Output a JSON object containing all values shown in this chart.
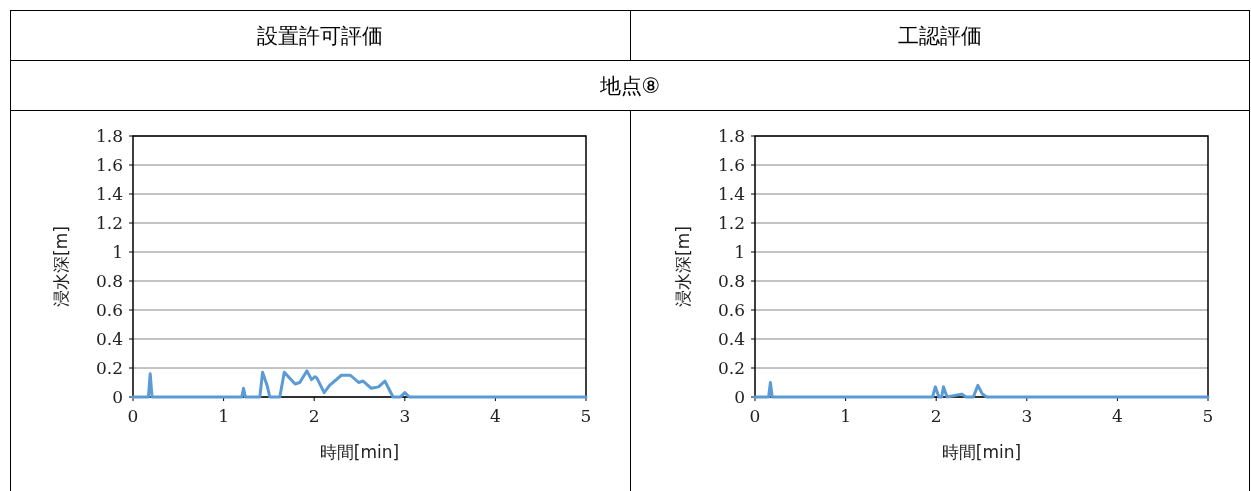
{
  "chart_data": [
    {
      "type": "line",
      "title": "設置許可評価",
      "subtitle": "地点⑧",
      "xlabel": "時間[min]",
      "ylabel": "浸水深[m]",
      "color": "#5b9bd5",
      "grid": "y",
      "x": [
        0,
        0.17,
        0.19,
        0.21,
        1.2,
        1.22,
        1.24,
        1.4,
        1.43,
        1.48,
        1.51,
        1.62,
        1.67,
        1.79,
        1.84,
        1.92,
        1.97,
        2.01,
        2.03,
        2.11,
        2.17,
        2.3,
        2.4,
        2.49,
        2.54,
        2.63,
        2.71,
        2.78,
        2.87,
        2.95,
        3.0,
        3.05,
        5
      ],
      "values": [
        0,
        0,
        0.16,
        0,
        0,
        0.06,
        0,
        0,
        0.17,
        0.08,
        0,
        0,
        0.17,
        0.09,
        0.1,
        0.18,
        0.12,
        0.14,
        0.13,
        0.03,
        0.08,
        0.15,
        0.15,
        0.1,
        0.11,
        0.06,
        0.07,
        0.11,
        0,
        0,
        0.03,
        0,
        0
      ],
      "xlim": [
        0,
        5
      ],
      "ylim": [
        0,
        1.8
      ],
      "xticks": [
        0,
        1,
        2,
        3,
        4,
        5
      ],
      "yticks": [
        0,
        0.2,
        0.4,
        0.6,
        0.8,
        1,
        1.2,
        1.4,
        1.6,
        1.8
      ]
    },
    {
      "type": "line",
      "title": "工認評価",
      "xlabel": "時間[min]",
      "ylabel": "浸水深[m]",
      "color": "#5b9bd5",
      "grid": "y",
      "x": [
        0,
        0.15,
        0.17,
        0.19,
        1.96,
        1.99,
        2.03,
        2.06,
        2.08,
        2.12,
        2.28,
        2.33,
        2.41,
        2.46,
        2.51,
        2.56,
        5
      ],
      "values": [
        0,
        0,
        0.1,
        0,
        0,
        0.07,
        0,
        0,
        0.07,
        0,
        0.02,
        0,
        0,
        0.08,
        0.02,
        0,
        0
      ],
      "xlim": [
        0,
        5
      ],
      "ylim": [
        0,
        1.8
      ],
      "xticks": [
        0,
        1,
        2,
        3,
        4,
        5
      ],
      "yticks": [
        0,
        0.2,
        0.4,
        0.6,
        0.8,
        1,
        1.2,
        1.4,
        1.6,
        1.8
      ]
    }
  ]
}
